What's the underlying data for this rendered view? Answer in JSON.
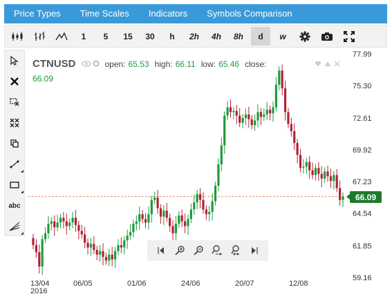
{
  "menu": [
    "Price Types",
    "Time Scales",
    "Indicators",
    "Symbols Comparison"
  ],
  "timeframes": [
    {
      "label": "1",
      "italic": false,
      "active": false
    },
    {
      "label": "5",
      "italic": false,
      "active": false
    },
    {
      "label": "15",
      "italic": false,
      "active": false
    },
    {
      "label": "30",
      "italic": false,
      "active": false
    },
    {
      "label": "h",
      "italic": false,
      "active": false
    },
    {
      "label": "2h",
      "italic": true,
      "active": false
    },
    {
      "label": "4h",
      "italic": true,
      "active": false
    },
    {
      "label": "8h",
      "italic": true,
      "active": false
    },
    {
      "label": "d",
      "italic": false,
      "active": true
    },
    {
      "label": "w",
      "italic": true,
      "active": false
    }
  ],
  "side_tools": {
    "text_tool": "abc"
  },
  "legend": {
    "symbol": "CTNUSD",
    "open_label": "open:",
    "open": "65.53",
    "high_label": "high:",
    "high": "66.11",
    "low_label": "low:",
    "low": "65.46",
    "close_label": "close:",
    "last": "66.09"
  },
  "price_tag": "66.09",
  "colors": {
    "up": "#1e9b3d",
    "down": "#b22234",
    "menubar": "#3a9ad9",
    "price_tag": "#1e7a2e"
  },
  "chart_data": {
    "type": "candlestick",
    "y_ticks": [
      "77.99",
      "75.30",
      "72.61",
      "69.92",
      "67.23",
      "64.54",
      "61.85",
      "59.16"
    ],
    "ylim": [
      59.16,
      77.99
    ],
    "x_ticks": [
      "13/04",
      "06/05",
      "01/06",
      "24/06",
      "20/07",
      "12/08"
    ],
    "x_year": "2016",
    "current_price": 66.09,
    "closes": [
      62.0,
      61.4,
      60.2,
      62.5,
      63.0,
      63.8,
      64.0,
      63.5,
      63.9,
      64.3,
      64.0,
      63.6,
      63.9,
      64.3,
      63.7,
      63.2,
      62.9,
      62.2,
      61.8,
      62.1,
      61.6,
      61.2,
      61.5,
      61.0,
      60.7,
      61.2,
      60.8,
      61.5,
      62.0,
      61.8,
      62.4,
      62.8,
      63.1,
      63.8,
      64.0,
      64.6,
      64.2,
      63.9,
      64.6,
      65.8,
      66.0,
      65.1,
      64.4,
      64.9,
      64.3,
      63.6,
      63.0,
      63.8,
      64.5,
      64.0,
      63.6,
      64.2,
      65.0,
      65.6,
      66.3,
      65.8,
      65.0,
      64.6,
      64.8,
      65.7,
      67.0,
      68.8,
      70.4,
      72.9,
      73.6,
      73.2,
      73.3,
      72.9,
      72.3,
      72.7,
      73.0,
      72.6,
      72.1,
      72.5,
      73.2,
      72.8,
      73.0,
      73.4,
      73.1,
      73.6,
      75.5,
      76.7,
      75.2,
      73.2,
      72.2,
      71.6,
      70.6,
      69.6,
      68.5,
      68.6,
      69.0,
      68.3,
      67.9,
      68.5,
      68.0,
      67.6,
      68.2,
      67.8,
      67.4,
      67.9,
      66.8,
      65.8,
      66.09
    ]
  }
}
